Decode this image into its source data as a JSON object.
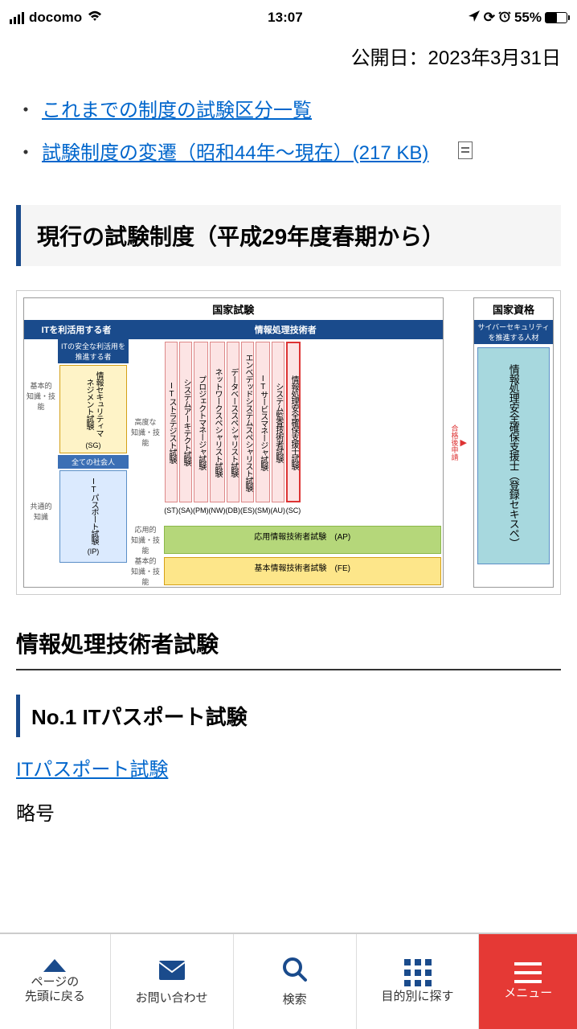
{
  "status": {
    "carrier": "docomo",
    "time": "13:07",
    "battery_pct": "55%"
  },
  "page": {
    "pub_date": "公開日：2023年3月31日",
    "link1": "これまでの制度の試験区分一覧",
    "link2": "試験制度の変遷（昭和44年～現在）(217 KB)",
    "section_header": "現行の試験制度（平成29年度春期から）",
    "section_title": "情報処理技術者試験",
    "subsection": "No.1 ITパスポート試験",
    "body_link": "ITパスポート試験",
    "body_text": "略号"
  },
  "chart": {
    "title_left": "国家試験",
    "title_right": "国家資格",
    "header_it_users": "ITを利活用する者",
    "header_it_safe": "ITの安全な利活用を推進する者",
    "header_everyone": "全ての社会人",
    "header_tech": "情報処理技術者",
    "header_cyber": "サイバーセキュリティを推進する人材",
    "level_basic": "基本的\n知識・技能",
    "level_common": "共通的\n知識",
    "level_advanced": "高度な\n知識・技能",
    "level_applied": "応用的\n知識・技能",
    "level_basic2": "基本的\n知識・技能",
    "sg_name": "情報セキュリティマネジメント試験",
    "sg_code": "(SG)",
    "ip_name": "ITパスポート試験",
    "ip_code": "(IP)",
    "exams": [
      {
        "name": "ITストラテジスト試験",
        "code": "(ST)"
      },
      {
        "name": "システムアーキテクト試験",
        "code": "(SA)"
      },
      {
        "name": "プロジェクトマネージャ試験",
        "code": "(PM)"
      },
      {
        "name": "ネットワークスペシャリスト試験",
        "code": "(NW)"
      },
      {
        "name": "データベーススペシャリスト試験",
        "code": "(DB)"
      },
      {
        "name": "エンベデッドシステムスペシャリスト試験",
        "code": "(ES)"
      },
      {
        "name": "ITサービスマネージャ試験",
        "code": "(SM)"
      },
      {
        "name": "システム監査技術者試験",
        "code": "(AU)"
      },
      {
        "name": "情報処理安全確保支援士試験",
        "code": "(SC)"
      }
    ],
    "ap_name": "応用情報技術者試験　(AP)",
    "fe_name": "基本情報技術者試験　(FE)",
    "riss_name": "情報処理安全確保支援士（登録セキスペ）",
    "arrow": "合格後申請",
    "colors": {
      "header_blue": "#1a4b8c",
      "yellow_box": "#fef3c7",
      "blue_box": "#dbeafe",
      "pink_box": "#fce4e4",
      "red_border": "#d33",
      "green_bar": "#b5d77a",
      "yellow_bar": "#fde68a",
      "cyan_box": "#a7d8de"
    }
  },
  "nav": {
    "top": "ページの\n先頭に戻る",
    "contact": "お問い合わせ",
    "search": "検索",
    "purpose": "目的別に探す",
    "menu": "メニュー"
  }
}
